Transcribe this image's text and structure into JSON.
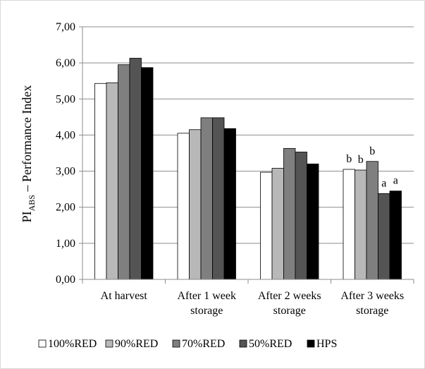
{
  "chart_data": {
    "type": "bar",
    "ylabel_main": "PI",
    "ylabel_sub": "ABS",
    "ylabel_rest": " – Performance Index",
    "categories": [
      [
        "At harvest"
      ],
      [
        "After 1 week",
        "storage"
      ],
      [
        "After 2 weeks",
        "storage"
      ],
      [
        "After 3 weeks",
        "storage"
      ]
    ],
    "series": [
      {
        "name": "100%RED",
        "color": "#ffffff",
        "values": [
          5.43,
          4.05,
          2.97,
          3.05
        ]
      },
      {
        "name": "90%RED",
        "color": "#b8b8b8",
        "values": [
          5.45,
          4.15,
          3.08,
          3.03
        ]
      },
      {
        "name": "70%RED",
        "color": "#7f7f7f",
        "values": [
          5.95,
          4.48,
          3.63,
          3.27
        ]
      },
      {
        "name": "50%RED",
        "color": "#545454",
        "values": [
          6.13,
          4.48,
          3.53,
          2.38
        ]
      },
      {
        "name": "HPS",
        "color": "#000000",
        "values": [
          5.87,
          4.18,
          3.2,
          2.45
        ]
      }
    ],
    "ylim": [
      0,
      7
    ],
    "yticks": [
      "0,00",
      "1,00",
      "2,00",
      "3,00",
      "4,00",
      "5,00",
      "6,00",
      "7,00"
    ],
    "grid": true,
    "legend_position": "bottom",
    "annotations": [
      {
        "category": 3,
        "series": 0,
        "text": "b"
      },
      {
        "category": 3,
        "series": 1,
        "text": "b"
      },
      {
        "category": 3,
        "series": 2,
        "text": "b"
      },
      {
        "category": 3,
        "series": 3,
        "text": "a"
      },
      {
        "category": 3,
        "series": 4,
        "text": "a"
      }
    ]
  }
}
